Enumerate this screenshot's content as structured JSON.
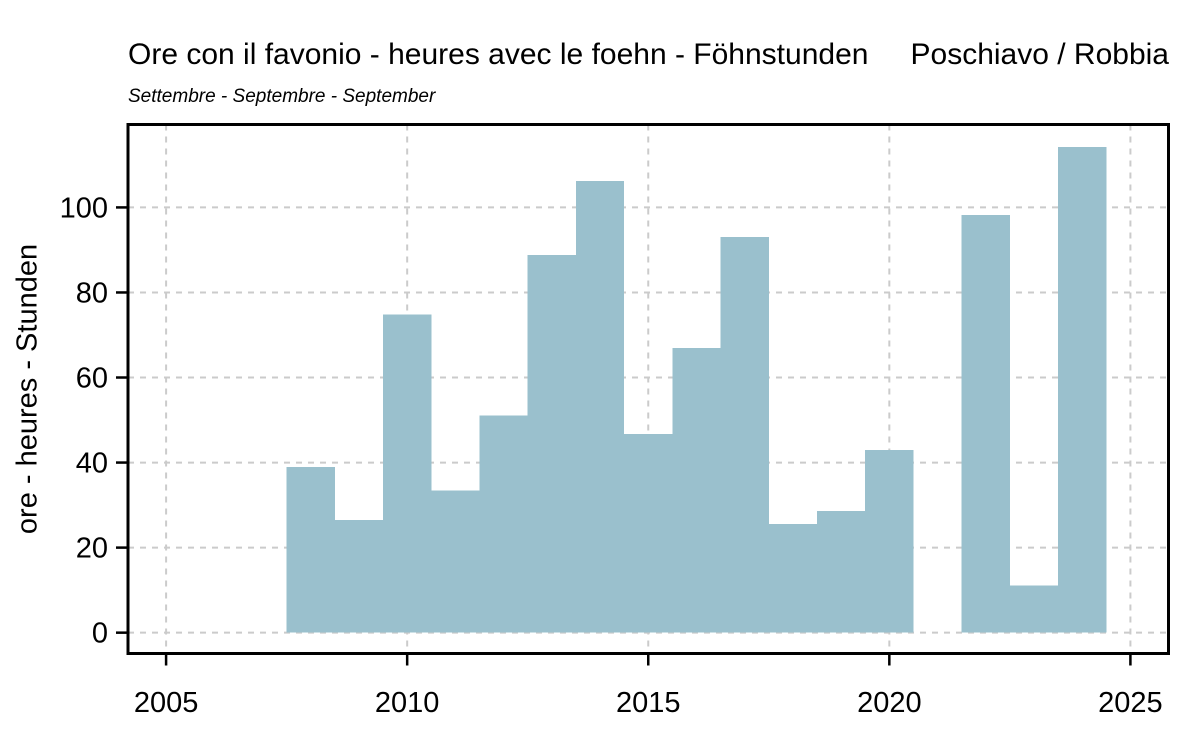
{
  "header": {
    "title": "Ore con il favonio - heures avec le foehn - Föhnstunden",
    "station": "Poschiavo / Robbia",
    "subtitle": "Settembre - Septembre - September"
  },
  "chart_data": {
    "type": "bar",
    "title": "Ore con il favonio - heures avec le foehn - Föhnstunden",
    "subtitle": "Settembre - Septembre - September",
    "station": "Poschiavo / Robbia",
    "xlabel": "",
    "ylabel": "ore - heures - Stunden",
    "x": [
      2008,
      2009,
      2010,
      2011,
      2012,
      2013,
      2014,
      2015,
      2016,
      2017,
      2018,
      2019,
      2020,
      2021,
      2022,
      2023,
      2024
    ],
    "values": [
      38.9,
      26.5,
      74.8,
      33.4,
      51.1,
      88.8,
      106.2,
      46.7,
      67.0,
      93.1,
      25.5,
      28.6,
      42.9,
      null,
      98.2,
      11.1,
      114.2
    ],
    "bar_width_years": 1,
    "xlim": [
      2004.21,
      2025.79
    ],
    "ylim": [
      -4.9,
      119.5
    ],
    "xticks": [
      2005,
      2010,
      2015,
      2020,
      2025
    ],
    "yticks": [
      0,
      20,
      40,
      60,
      80,
      100
    ],
    "grid": true,
    "grid_style": "dashed",
    "legend": "none",
    "colors": {
      "bar_fill": "#9ac0cd",
      "grid": "#cbcbcb",
      "axis": "#000000",
      "text": "#000000",
      "background": "#ffffff"
    }
  }
}
